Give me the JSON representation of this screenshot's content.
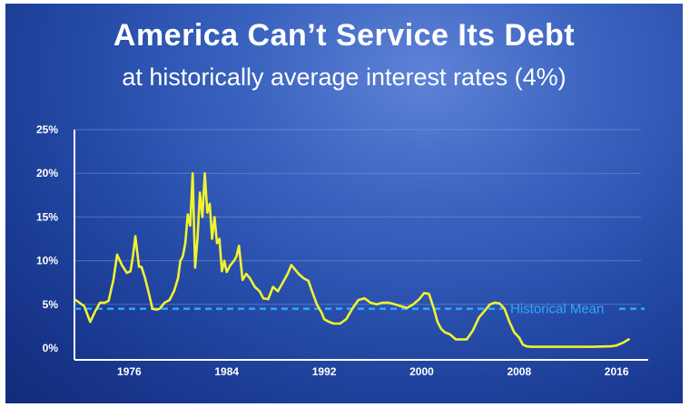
{
  "header": {
    "title": "America Can’t Service Its Debt",
    "subtitle": "at historically average interest rates (4%)"
  },
  "chart_data": {
    "type": "line",
    "title": "America Can’t Service Its Debt",
    "subtitle": "at historically average interest rates (4%)",
    "xlabel": "",
    "ylabel": "",
    "xlim": [
      1971.5,
      2018
    ],
    "ylim": [
      0,
      25
    ],
    "y_ticks": [
      0,
      5,
      10,
      15,
      20,
      25
    ],
    "y_tick_labels": [
      "0%",
      "5%",
      "10%",
      "15%",
      "20%",
      "25%"
    ],
    "x_ticks": [
      1976,
      1984,
      1992,
      2000,
      2008,
      2016
    ],
    "x_tick_labels": [
      "1976",
      "1984",
      "1992",
      "2000",
      "2008",
      "2016"
    ],
    "grid": true,
    "series": [
      {
        "color": "#f2f230",
        "x": [
          1971.6,
          1972.3,
          1972.8,
          1973.2,
          1973.6,
          1974.0,
          1974.3,
          1974.7,
          1975.0,
          1975.4,
          1975.8,
          1976.1,
          1976.3,
          1976.5,
          1976.8,
          1977.0,
          1977.3,
          1977.6,
          1977.9,
          1978.2,
          1978.5,
          1978.9,
          1979.3,
          1979.7,
          1980.0,
          1980.2,
          1980.4,
          1980.6,
          1980.8,
          1981.0,
          1981.2,
          1981.4,
          1981.6,
          1981.8,
          1982.0,
          1982.2,
          1982.4,
          1982.6,
          1982.8,
          1983.0,
          1983.2,
          1983.4,
          1983.6,
          1983.8,
          1984.0,
          1984.3,
          1984.6,
          1984.8,
          1985.0,
          1985.3,
          1985.6,
          1985.9,
          1986.3,
          1986.7,
          1987.0,
          1987.4,
          1987.8,
          1988.2,
          1988.6,
          1989.0,
          1989.3,
          1989.6,
          1989.9,
          1990.3,
          1990.7,
          1991.0,
          1991.4,
          1991.8,
          1992.0,
          1992.4,
          1992.8,
          1993.3,
          1993.8,
          1994.3,
          1994.8,
          1995.3,
          1995.8,
          1996.3,
          1996.8,
          1997.3,
          1997.8,
          1998.3,
          1998.8,
          1999.3,
          1999.8,
          2000.2,
          2000.6,
          2001.0,
          2001.3,
          2001.6,
          2001.9,
          2002.3,
          2002.8,
          2003.3,
          2003.7,
          2004.2,
          2004.7,
          2005.2,
          2005.6,
          2006.0,
          2006.4,
          2006.8,
          2007.2,
          2007.6,
          2008.0,
          2008.3,
          2008.6,
          2009.0,
          2010.0,
          2012.0,
          2014.0,
          2015.5,
          2016.0,
          2016.5,
          2017.0
        ],
        "y": [
          5.5,
          4.8,
          3.0,
          4.2,
          5.2,
          5.2,
          5.4,
          7.8,
          10.7,
          9.5,
          8.6,
          8.8,
          10.5,
          12.8,
          9.3,
          9.3,
          8.0,
          6.3,
          4.5,
          4.4,
          4.5,
          5.2,
          5.5,
          6.6,
          8.0,
          10.0,
          10.5,
          12.0,
          15.3,
          14.0,
          20.0,
          9.2,
          12.5,
          17.8,
          15.0,
          20.0,
          15.5,
          16.5,
          12.5,
          15.0,
          12.0,
          12.5,
          8.8,
          10.0,
          8.7,
          9.5,
          10.0,
          10.5,
          11.7,
          7.8,
          8.5,
          8.0,
          7.0,
          6.5,
          5.7,
          5.6,
          7.0,
          6.5,
          7.5,
          8.5,
          9.5,
          9.0,
          8.5,
          8.0,
          7.7,
          6.5,
          5.0,
          4.0,
          3.3,
          3.0,
          2.8,
          2.8,
          3.3,
          4.5,
          5.5,
          5.7,
          5.2,
          5.0,
          5.2,
          5.2,
          5.0,
          4.8,
          4.6,
          5.0,
          5.6,
          6.3,
          6.2,
          4.5,
          3.0,
          2.2,
          1.8,
          1.6,
          1.0,
          1.0,
          1.0,
          2.0,
          3.5,
          4.3,
          5.0,
          5.2,
          5.1,
          4.5,
          3.0,
          1.8,
          1.2,
          0.4,
          0.2,
          0.15,
          0.15,
          0.15,
          0.15,
          0.2,
          0.3,
          0.6,
          1.0
        ]
      }
    ],
    "reference_line": {
      "label": "Historical Mean",
      "value": 4.5,
      "color": "#2fa8ff"
    },
    "colors": {
      "line": "#f2f230",
      "mean": "#2fa8ff",
      "background": "#244aa6"
    }
  }
}
